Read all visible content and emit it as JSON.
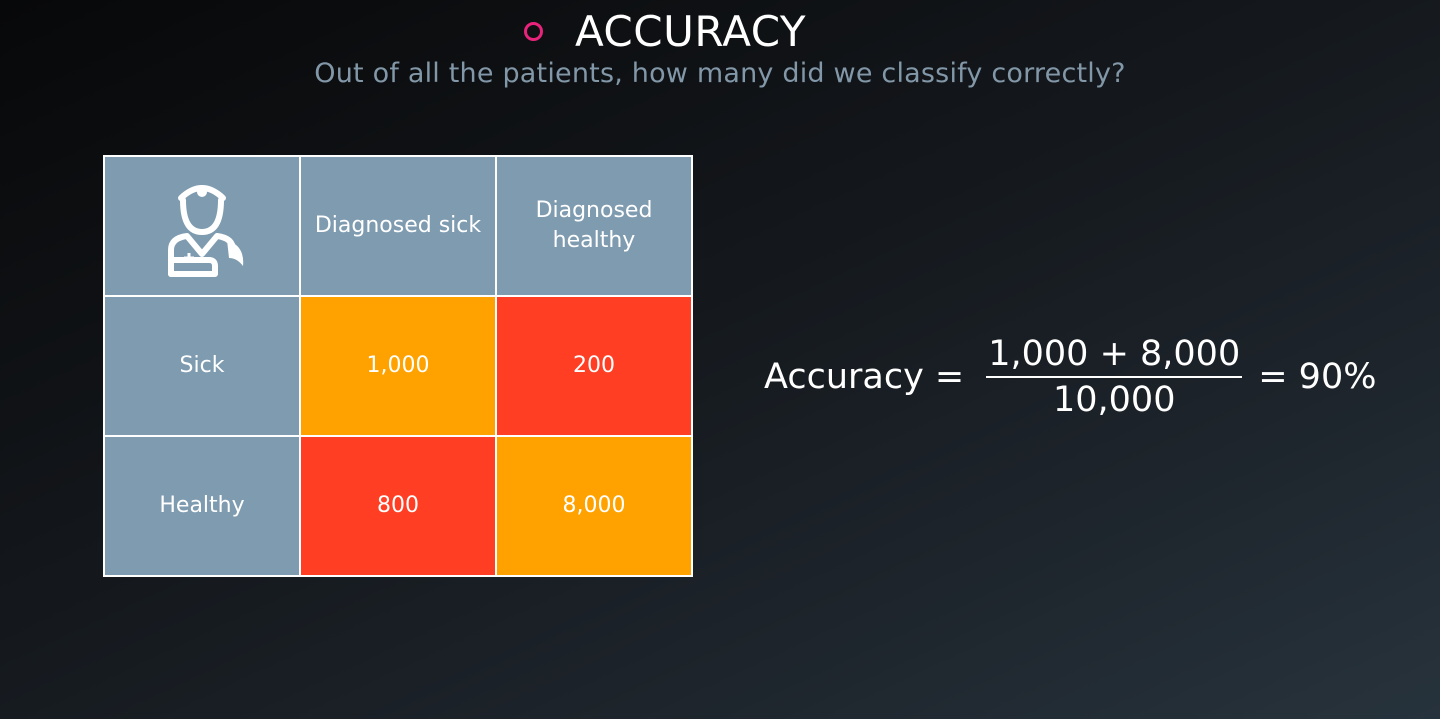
{
  "slide": {
    "title": "ACCURACY",
    "subtitle": "Out of all the patients, how many did we classify correctly?",
    "accent_color": "#e8237b"
  },
  "matrix": {
    "corner_icon": "doctor-icon",
    "column_headers": [
      "Diagnosed sick",
      "Diagnosed healthy"
    ],
    "rows": [
      {
        "label": "Sick",
        "values": [
          "1,000",
          "200"
        ]
      },
      {
        "label": "Healthy",
        "values": [
          "800",
          "8,000"
        ]
      }
    ],
    "colors": {
      "header": "#7f9bb0",
      "correct": "#ffa200",
      "incorrect": "#ff3e23"
    }
  },
  "formula": {
    "label": "Accuracy =",
    "numerator": "1,000 + 8,000",
    "denominator": "10,000",
    "result": "= 90%"
  }
}
